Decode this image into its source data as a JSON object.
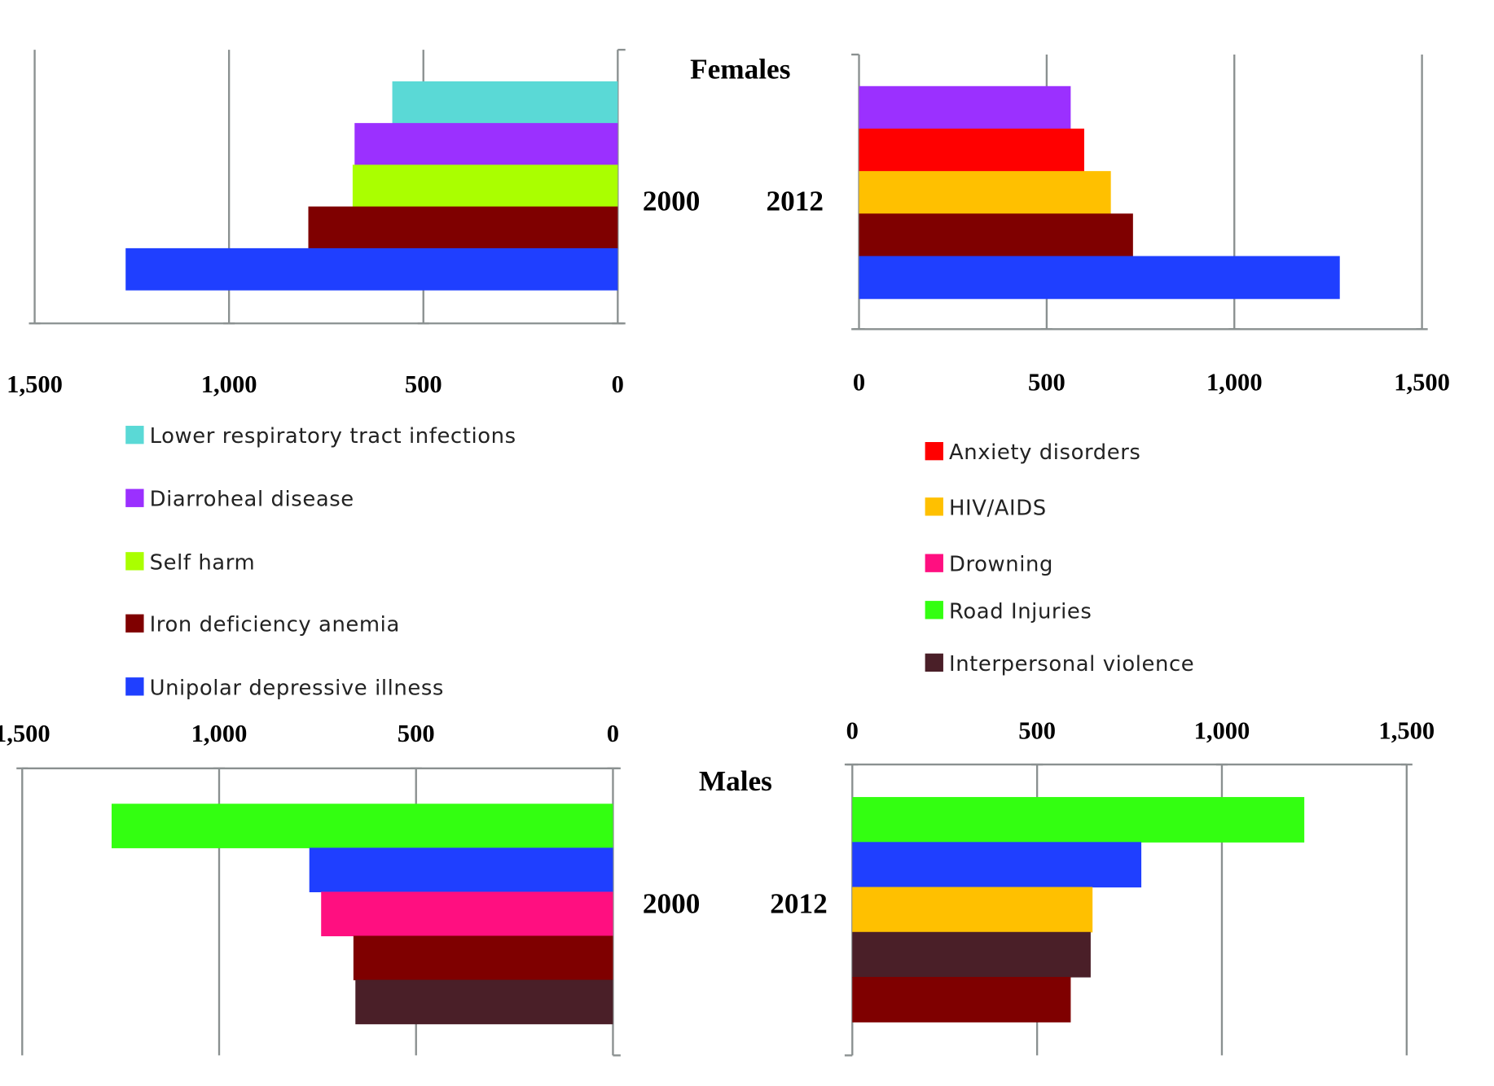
{
  "chart_data": [
    {
      "type": "bar",
      "orientation": "horizontal",
      "direction": "right-to-left",
      "panel": "Females",
      "year": "2000",
      "categories": [
        "Lower respiratory tract infections",
        "Diarroheal  disease",
        "Self harm",
        "Iron deficiency anemia",
        "Unipolar depressive illness"
      ],
      "values": [
        580,
        677,
        682,
        796,
        1266
      ],
      "colors": [
        "#5ad9d6",
        "#9b30ff",
        "#aaff00",
        "#7f0000",
        "#1f3fff"
      ],
      "xlim": [
        0,
        1500
      ],
      "ticks": [
        "1,500",
        "1,000",
        "500",
        "0"
      ],
      "grid": true
    },
    {
      "type": "bar",
      "orientation": "horizontal",
      "direction": "left-to-right",
      "panel": "Females",
      "year": "2012",
      "categories": [
        "Diarroheal  disease",
        "Anxiety disorders",
        "HIV/AIDS",
        "Iron deficiency anemia",
        "Unipolar depressive illness"
      ],
      "values": [
        564,
        600,
        671,
        730,
        1281
      ],
      "colors": [
        "#9b30ff",
        "#ff0000",
        "#ffc000",
        "#7f0000",
        "#1f3fff"
      ],
      "xlim": [
        0,
        1500
      ],
      "ticks": [
        "0",
        "500",
        "1,000",
        "1,500"
      ],
      "grid": true
    },
    {
      "type": "bar",
      "orientation": "horizontal",
      "direction": "right-to-left",
      "panel": "Males",
      "year": "2000",
      "categories": [
        "Road Injuries",
        "Unipolar depressive illness",
        "Drowning",
        "Iron deficiency anemia",
        "Interpersonal violence"
      ],
      "values": [
        1273,
        771,
        741,
        659,
        654
      ],
      "colors": [
        "#33ff11",
        "#1f3fff",
        "#ff0f80",
        "#7f0000",
        "#4a1f28"
      ],
      "xlim": [
        0,
        1500
      ],
      "ticks": [
        "1,500",
        "1,000",
        "500",
        "0"
      ],
      "grid": true
    },
    {
      "type": "bar",
      "orientation": "horizontal",
      "direction": "left-to-right",
      "panel": "Males",
      "year": "2012",
      "categories": [
        "Road Injuries",
        "Unipolar depressive illness",
        "HIV/AIDS",
        "Interpersonal violence",
        "Iron deficiency anemia"
      ],
      "values": [
        1223,
        782,
        650,
        645,
        591
      ],
      "colors": [
        "#33ff11",
        "#1f3fff",
        "#ffc000",
        "#4a1f28",
        "#7f0000"
      ],
      "xlim": [
        0,
        1500
      ],
      "ticks": [
        "0",
        "500",
        "1,000",
        "1,500"
      ],
      "grid": true
    }
  ],
  "labels": {
    "females": "Females",
    "males": "Males",
    "year2000": "2000",
    "year2012": "2012"
  },
  "legend_left": [
    {
      "label": "Lower respiratory tract infections",
      "color": "#5ad9d6"
    },
    {
      "label": "Diarroheal  disease",
      "color": "#9b30ff"
    },
    {
      "label": "Self harm",
      "color": "#aaff00"
    },
    {
      "label": "Iron deficiency anemia",
      "color": "#7f0000"
    },
    {
      "label": "Unipolar depressive illness",
      "color": "#1f3fff"
    }
  ],
  "legend_right": [
    {
      "label": "Anxiety disorders",
      "color": "#ff0000"
    },
    {
      "label": "HIV/AIDS",
      "color": "#ffc000"
    },
    {
      "label": "Drowning",
      "color": "#ff0f80"
    },
    {
      "label": "Road Injuries",
      "color": "#33ff11"
    },
    {
      "label": "Interpersonal violence",
      "color": "#4a1f28"
    }
  ]
}
